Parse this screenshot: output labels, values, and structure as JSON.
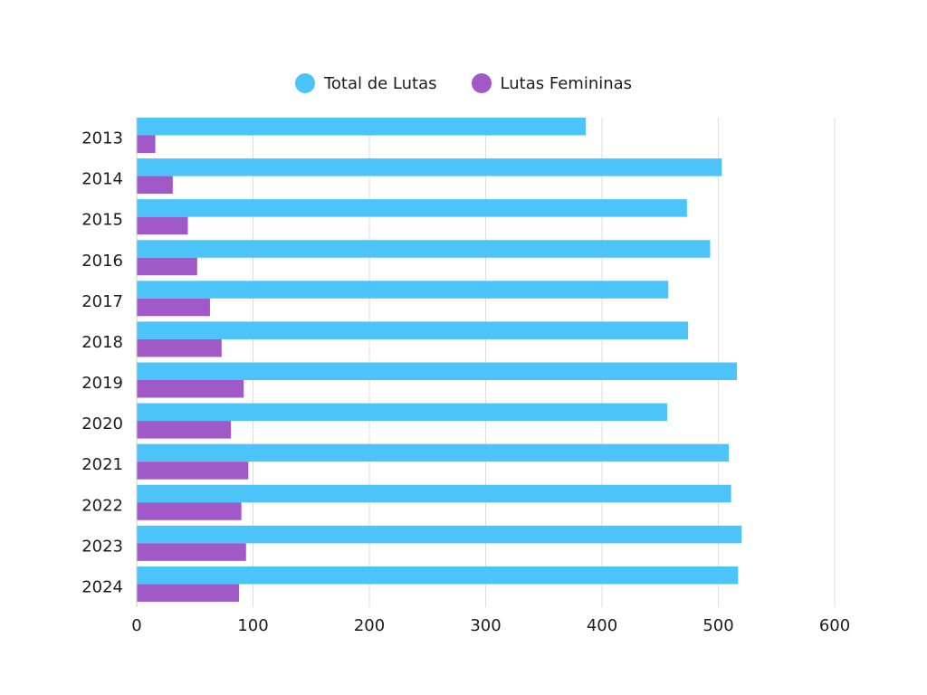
{
  "chart_data": {
    "type": "bar",
    "orientation": "horizontal",
    "categories": [
      "2013",
      "2014",
      "2015",
      "2016",
      "2017",
      "2018",
      "2019",
      "2020",
      "2021",
      "2022",
      "2023",
      "2024"
    ],
    "series": [
      {
        "name": "Total de Lutas",
        "color": "#4cc3f9",
        "values": [
          386,
          503,
          473,
          493,
          457,
          474,
          516,
          456,
          509,
          511,
          520,
          517
        ]
      },
      {
        "name": "Lutas Femininas",
        "color": "#a259c8",
        "values": [
          16,
          31,
          44,
          52,
          63,
          73,
          92,
          81,
          96,
          90,
          94,
          88
        ]
      }
    ],
    "xlim": [
      0,
      600
    ],
    "xticks": [
      "0",
      "100",
      "200",
      "300",
      "400",
      "500",
      "600"
    ],
    "grid": true,
    "legend_position": "top-center"
  }
}
